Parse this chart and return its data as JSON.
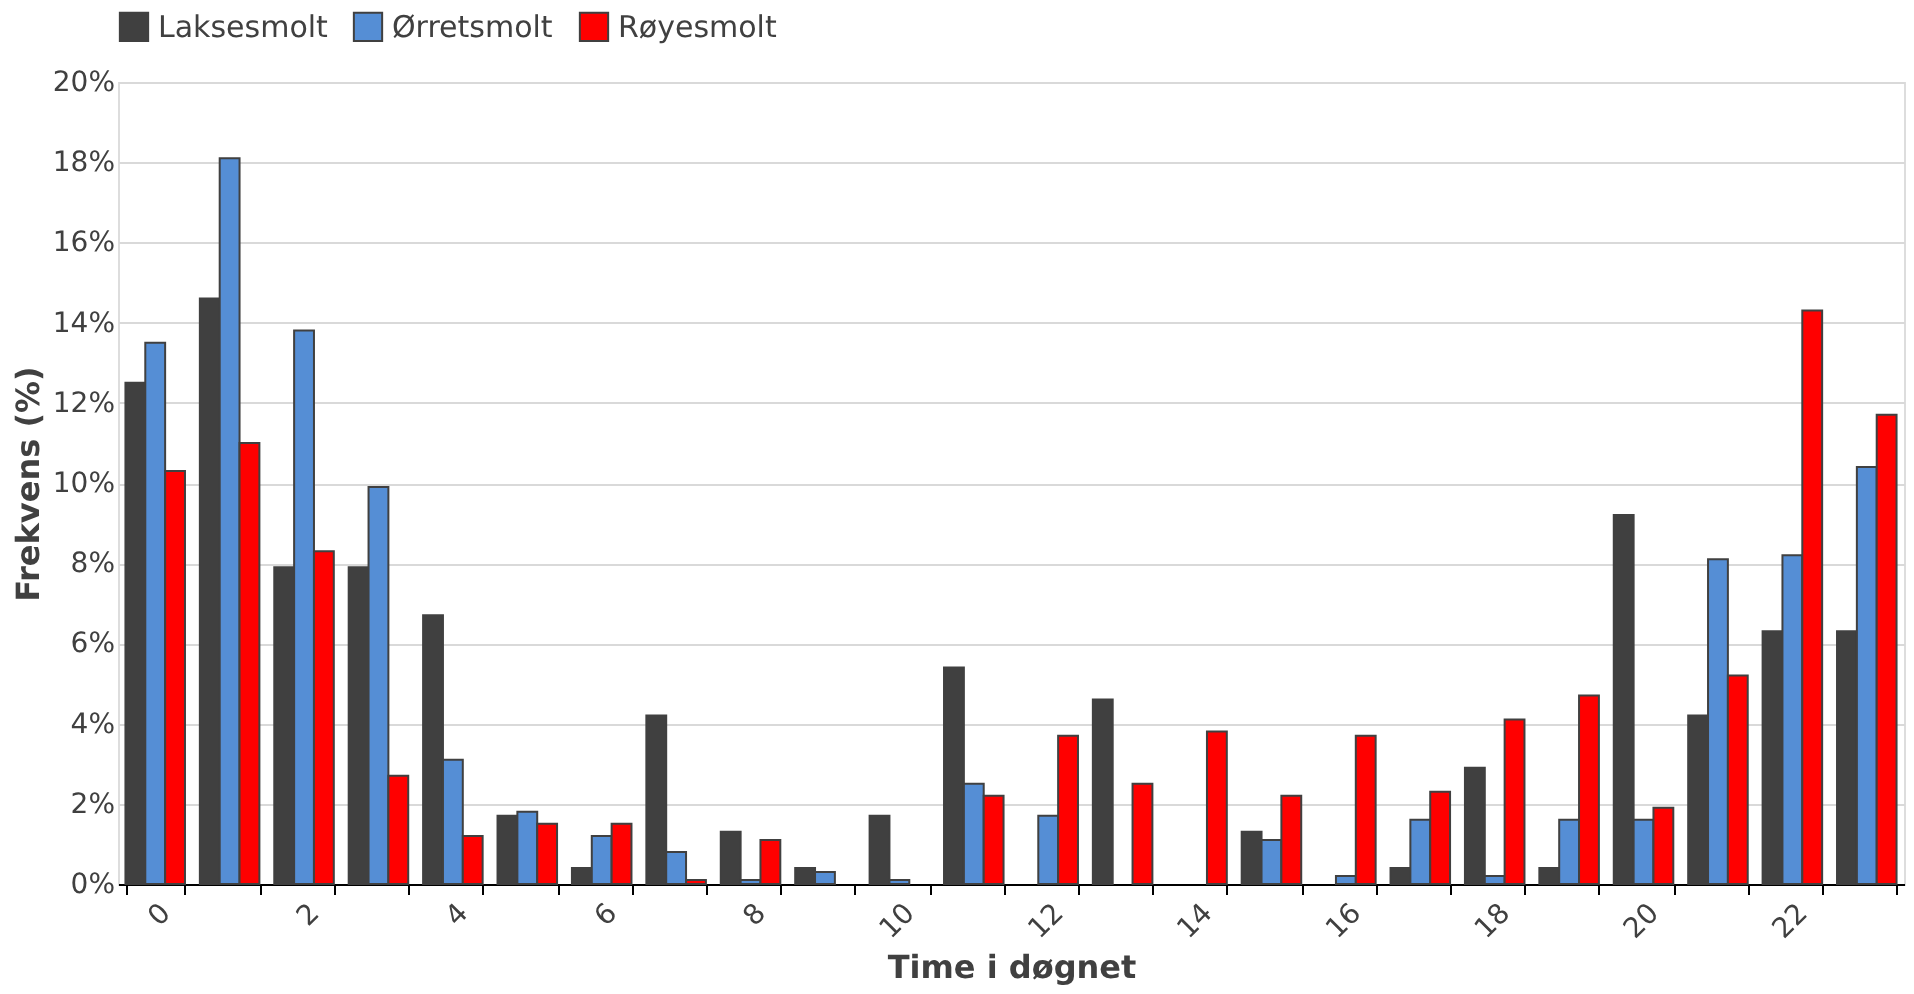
{
  "chart_data": {
    "type": "bar",
    "xlabel": "Time i døgnet",
    "ylabel": "Frekvens (%)",
    "categories": [
      "0",
      null,
      "2",
      null,
      "4",
      null,
      "6",
      null,
      "8",
      null,
      "10",
      null,
      "12",
      null,
      "14",
      null,
      "16",
      null,
      "18",
      null,
      "20",
      null,
      "22",
      null
    ],
    "series": [
      {
        "name": "Laksesmolt",
        "color": "#404040",
        "values": [
          12.5,
          14.6,
          7.9,
          7.9,
          6.7,
          1.7,
          0.4,
          4.2,
          1.3,
          0.4,
          1.7,
          5.4,
          0,
          4.6,
          0,
          1.3,
          0,
          0.4,
          2.9,
          0.4,
          9.2,
          4.2,
          6.3,
          6.3
        ]
      },
      {
        "name": "Ørretsmolt",
        "color": "#558ed5",
        "values": [
          13.5,
          18.1,
          13.8,
          9.9,
          3.1,
          1.8,
          1.2,
          0.8,
          0.1,
          0.3,
          0.1,
          2.5,
          1.7,
          0,
          0,
          1.1,
          0.2,
          1.6,
          0.2,
          1.6,
          1.6,
          8.1,
          8.2,
          10.4
        ]
      },
      {
        "name": "Røyesmolt",
        "color": "#ff0000",
        "values": [
          10.3,
          11.0,
          8.3,
          2.7,
          1.2,
          1.5,
          1.5,
          0.1,
          1.1,
          0,
          0,
          2.2,
          3.7,
          2.5,
          3.8,
          2.2,
          3.7,
          2.3,
          4.1,
          4.7,
          1.9,
          5.2,
          14.3,
          11.7
        ]
      }
    ],
    "ylim": [
      0,
      20
    ],
    "yticks": [
      {
        "value": 0,
        "label": "0%"
      },
      {
        "value": 2,
        "label": "2%"
      },
      {
        "value": 4,
        "label": "4%"
      },
      {
        "value": 6,
        "label": "6%"
      },
      {
        "value": 8,
        "label": "8%"
      },
      {
        "value": 10,
        "label": "10%"
      },
      {
        "value": 12,
        "label": "12%"
      },
      {
        "value": 14,
        "label": "14%"
      },
      {
        "value": 16,
        "label": "16%"
      },
      {
        "value": 18,
        "label": "18%"
      },
      {
        "value": 20,
        "label": "20%"
      }
    ],
    "grid": "y",
    "legend": "top"
  }
}
